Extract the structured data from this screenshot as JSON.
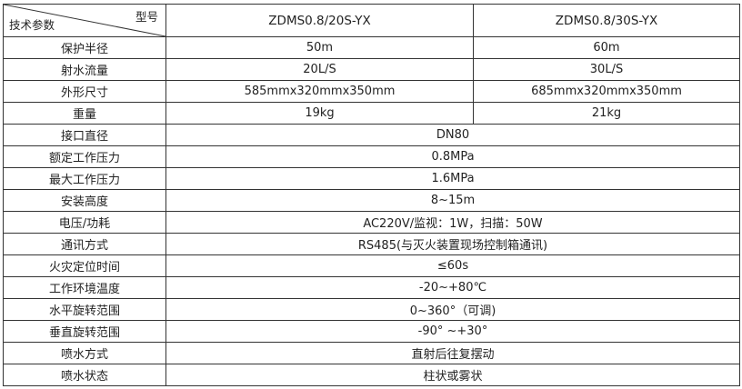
{
  "header": {
    "model_label": "型号",
    "param_label": "技术参数",
    "models": [
      "ZDMS0.8/20S-YX",
      "ZDMS0.8/30S-YX"
    ]
  },
  "rows": [
    {
      "label": "保护半径",
      "values": [
        "50m",
        "60m"
      ]
    },
    {
      "label": "射水流量",
      "values": [
        "20L/S",
        "30L/S"
      ]
    },
    {
      "label": "外形尺寸",
      "values": [
        "585mmx320mmx350mm",
        "685mmx320mmx350mm"
      ]
    },
    {
      "label": "重量",
      "values": [
        "19kg",
        "21kg"
      ]
    },
    {
      "label": "接口直径",
      "value": "DN80"
    },
    {
      "label": "额定工作压力",
      "value": "0.8MPa"
    },
    {
      "label": "最大工作压力",
      "value": "1.6MPa"
    },
    {
      "label": "安装高度",
      "value": "8~15m"
    },
    {
      "label": "电压/功耗",
      "value": "AC220V/监视：1W，扫描：50W"
    },
    {
      "label": "通讯方式",
      "value": "RS485(与灭火装置现场控制箱通讯)"
    },
    {
      "label": "火灾定位时间",
      "value": "≤60s"
    },
    {
      "label": "工作环境温度",
      "value": "-20~+80℃"
    },
    {
      "label": "水平旋转范围",
      "value": "0~360°（可调)"
    },
    {
      "label": "垂直旋转范围",
      "value": "-90° ~+30°"
    },
    {
      "label": "喷水方式",
      "value": "直射后往复摆动"
    },
    {
      "label": "喷水状态",
      "value": "柱状或雾状"
    }
  ]
}
